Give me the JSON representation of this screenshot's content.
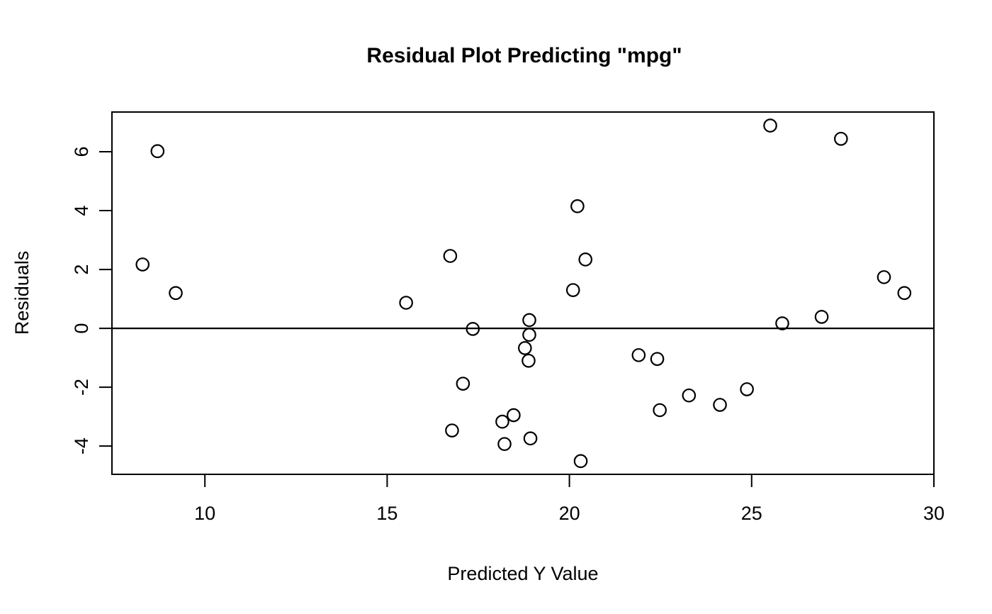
{
  "chart_data": {
    "type": "scatter",
    "title": "Residual Plot Predicting \"mpg\"",
    "xlabel": "Predicted Y Value",
    "ylabel": "Residuals",
    "xlim": [
      7.45,
      30.0
    ],
    "ylim": [
      -4.96,
      7.35
    ],
    "x_ticks": [
      "10",
      "15",
      "20",
      "25",
      "30"
    ],
    "x_tick_values": [
      10,
      15,
      20,
      25,
      30
    ],
    "y_ticks": [
      "-4",
      "-2",
      "0",
      "2",
      "4",
      "6"
    ],
    "y_tick_values": [
      -4,
      -2,
      0,
      2,
      4,
      6
    ],
    "grid": false,
    "legend_position": "none",
    "zero_line_y": 0,
    "marker": "open-circle",
    "marker_color": "#000000",
    "line_color": "#000000",
    "background_color": "#ffffff",
    "points": [
      {
        "x": 8.29,
        "y": 2.17
      },
      {
        "x": 8.7,
        "y": 6.02
      },
      {
        "x": 9.2,
        "y": 1.2
      },
      {
        "x": 15.52,
        "y": 0.87
      },
      {
        "x": 16.73,
        "y": 2.46
      },
      {
        "x": 16.78,
        "y": -3.47
      },
      {
        "x": 17.08,
        "y": -1.88
      },
      {
        "x": 17.35,
        "y": -0.02
      },
      {
        "x": 18.16,
        "y": -3.17
      },
      {
        "x": 18.22,
        "y": -3.93
      },
      {
        "x": 18.47,
        "y": -2.95
      },
      {
        "x": 18.78,
        "y": -0.67
      },
      {
        "x": 18.88,
        "y": -1.1
      },
      {
        "x": 18.9,
        "y": 0.28
      },
      {
        "x": 18.9,
        "y": -0.22
      },
      {
        "x": 18.93,
        "y": -3.74
      },
      {
        "x": 20.1,
        "y": 1.3
      },
      {
        "x": 20.22,
        "y": 4.15
      },
      {
        "x": 20.31,
        "y": -4.51
      },
      {
        "x": 20.44,
        "y": 2.34
      },
      {
        "x": 21.9,
        "y": -0.91
      },
      {
        "x": 22.41,
        "y": -1.04
      },
      {
        "x": 22.48,
        "y": -2.78
      },
      {
        "x": 23.28,
        "y": -2.28
      },
      {
        "x": 24.13,
        "y": -2.6
      },
      {
        "x": 24.87,
        "y": -2.07
      },
      {
        "x": 25.51,
        "y": 6.89
      },
      {
        "x": 25.84,
        "y": 0.17
      },
      {
        "x": 26.92,
        "y": 0.39
      },
      {
        "x": 27.45,
        "y": 6.44
      },
      {
        "x": 28.63,
        "y": 1.74
      },
      {
        "x": 29.19,
        "y": 1.2
      }
    ]
  }
}
